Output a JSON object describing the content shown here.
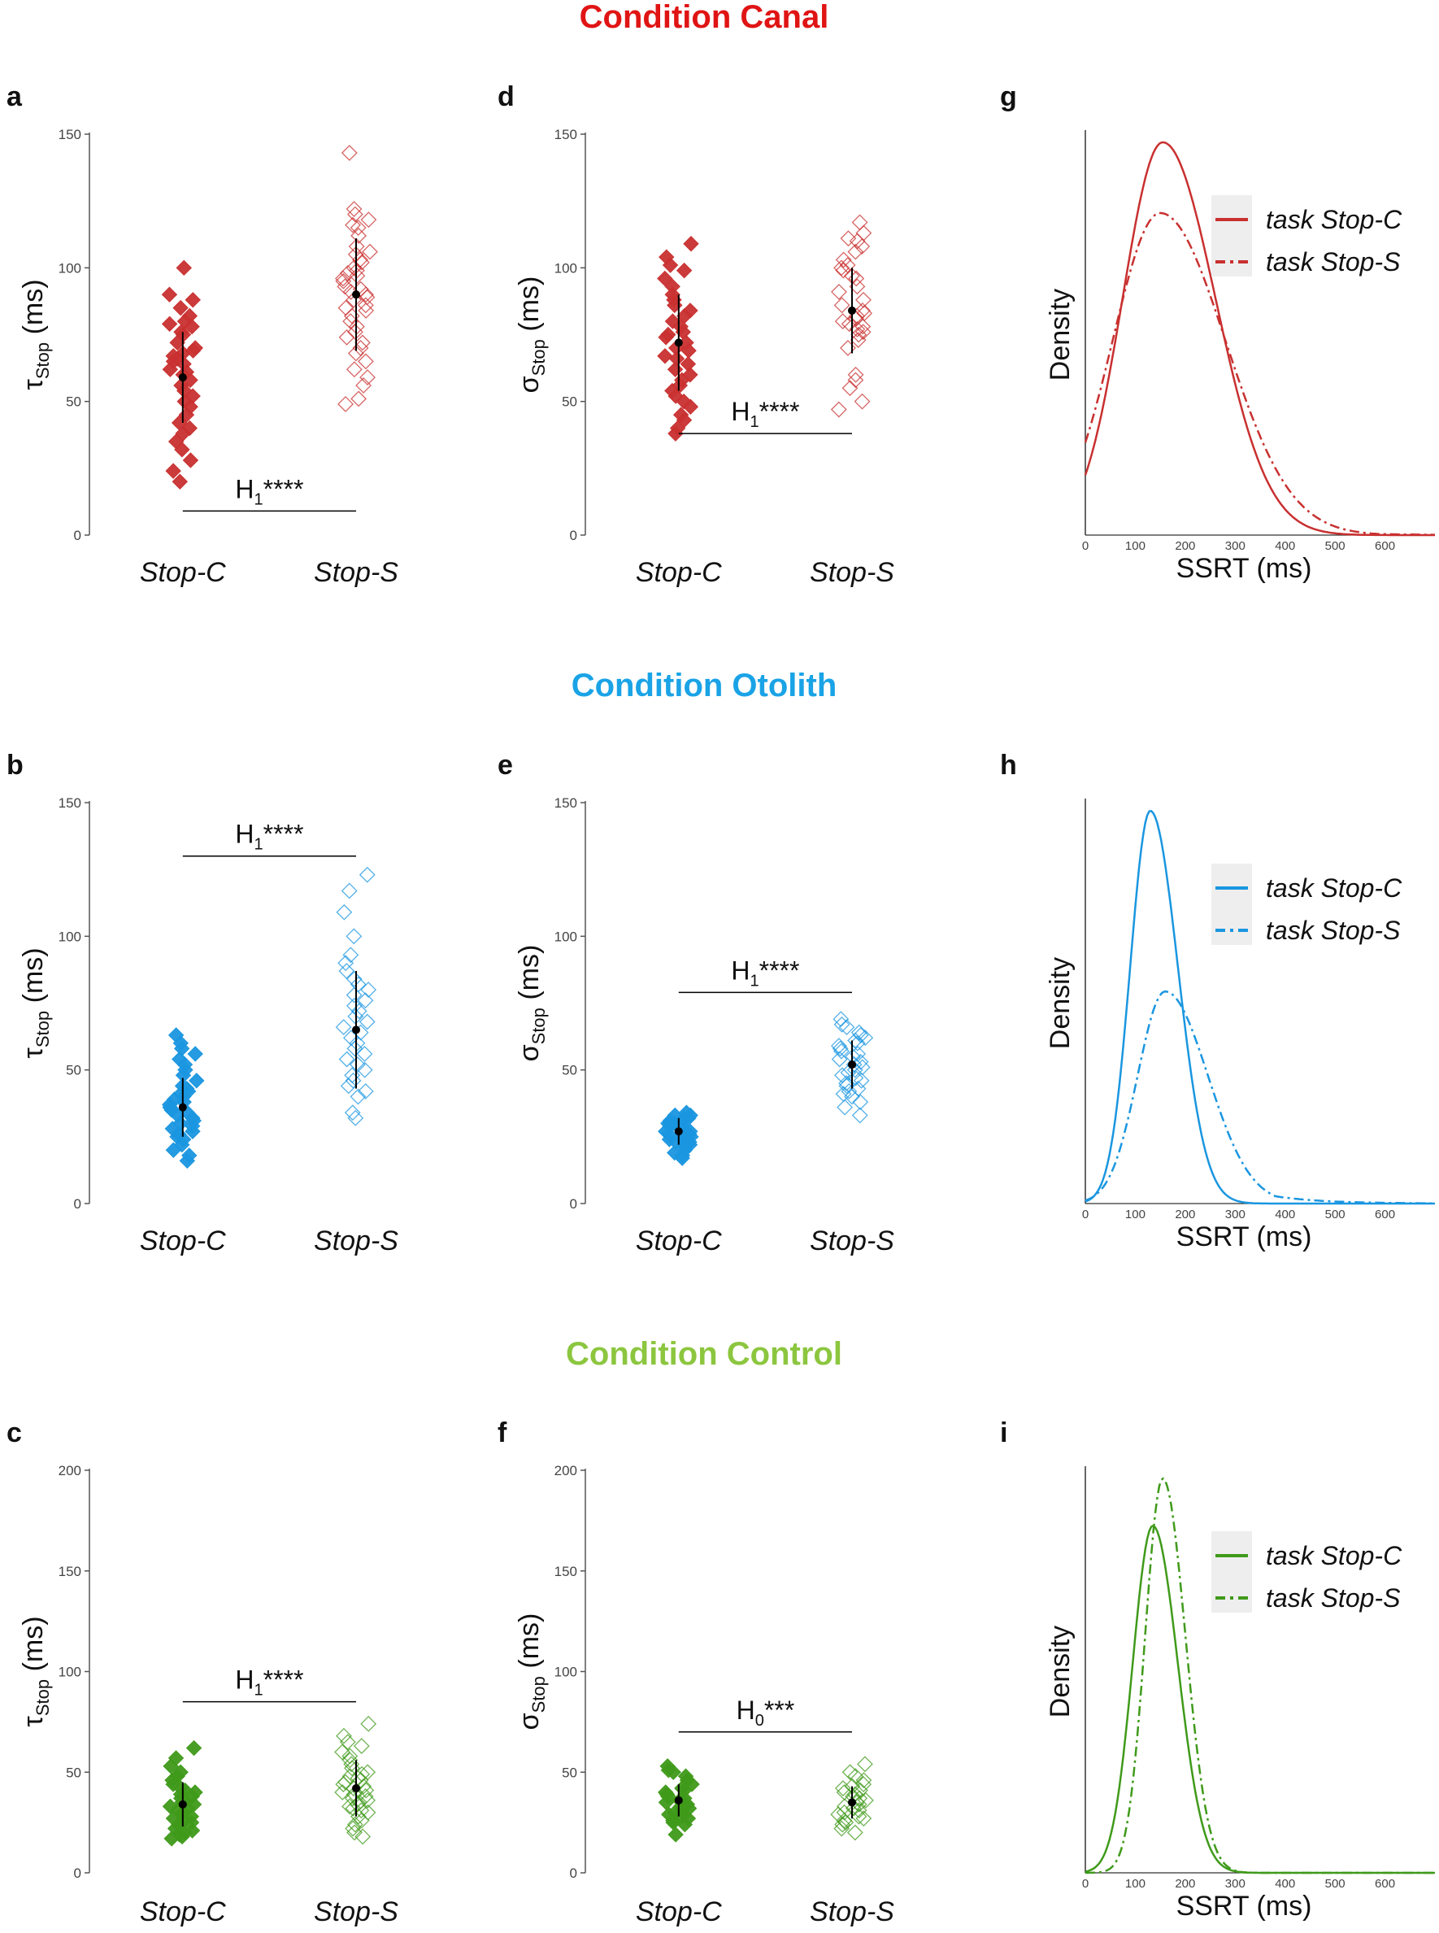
{
  "figure": {
    "conditions": [
      {
        "title": "Condition Canal",
        "color": "#e01414"
      },
      {
        "title": "Condition Otolith",
        "color": "#1aa3e6"
      },
      {
        "title": "Condition Control",
        "color": "#8cc63f"
      }
    ],
    "series_colors": {
      "canal": "#c93030",
      "otolith": "#1a96e0",
      "control": "#3f9a1a"
    },
    "category_labels": [
      "Stop-C",
      "Stop-S"
    ],
    "ylabel_tau": {
      "symbol": "τ",
      "sub": "Stop",
      "unit": " (ms)"
    },
    "ylabel_sigma": {
      "symbol": "σ",
      "sub": "Stop",
      "unit": " (ms)"
    },
    "density_ylabel": "Density",
    "density_xlabel": "SSRT (ms)",
    "legend": [
      "task Stop-C",
      "task Stop-S"
    ]
  },
  "chart_data": [
    {
      "id": "a",
      "letter": "a",
      "type": "scatter",
      "condition": "canal",
      "ylim": [
        0,
        150
      ],
      "yticks": [
        0,
        50,
        100,
        150
      ],
      "categories": [
        "Stop-C",
        "Stop-S"
      ],
      "series": [
        {
          "name": "Stop-C",
          "filled": true,
          "values": [
            100,
            90,
            88,
            85,
            82,
            80,
            79,
            78,
            76,
            75,
            72,
            70,
            69,
            68,
            67,
            66,
            65,
            64,
            62,
            61,
            60,
            58,
            56,
            54,
            52,
            50,
            48,
            45,
            42,
            40,
            38,
            35,
            32,
            28,
            24,
            20
          ],
          "mean": 59,
          "sd": 17
        },
        {
          "name": "Stop-S",
          "filled": false,
          "values": [
            143,
            122,
            120,
            118,
            116,
            115,
            112,
            108,
            106,
            105,
            103,
            102,
            100,
            99,
            98,
            97,
            96,
            95,
            93,
            92,
            91,
            90,
            89,
            88,
            86,
            85,
            84,
            82,
            80,
            78,
            76,
            74,
            72,
            70,
            68,
            65,
            62,
            59,
            56,
            51,
            49
          ],
          "mean": 90,
          "sd": 21
        }
      ],
      "significance": {
        "label": "H",
        "sub": "1",
        "stars": "****",
        "y": 9
      }
    },
    {
      "id": "d",
      "letter": "d",
      "type": "scatter",
      "condition": "canal",
      "ylim": [
        0,
        150
      ],
      "yticks": [
        0,
        50,
        100,
        150
      ],
      "categories": [
        "Stop-C",
        "Stop-S"
      ],
      "series": [
        {
          "name": "Stop-C",
          "filled": true,
          "values": [
            109,
            104,
            101,
            99,
            96,
            93,
            90,
            88,
            86,
            84,
            82,
            80,
            78,
            76,
            75,
            74,
            72,
            70,
            69,
            67,
            66,
            64,
            62,
            60,
            58,
            56,
            54,
            52,
            50,
            48,
            45,
            43,
            40,
            38
          ],
          "mean": 72,
          "sd": 18
        },
        {
          "name": "Stop-S",
          "filled": false,
          "values": [
            117,
            113,
            111,
            110,
            108,
            106,
            103,
            101,
            100,
            99,
            97,
            96,
            93,
            91,
            88,
            86,
            84,
            83,
            82,
            81,
            80,
            79,
            78,
            77,
            76,
            75,
            73,
            70,
            60,
            58,
            55,
            50,
            47
          ],
          "mean": 84,
          "sd": 16
        }
      ],
      "significance": {
        "label": "H",
        "sub": "1",
        "stars": "****",
        "y": 38
      }
    },
    {
      "id": "g",
      "letter": "g",
      "type": "line",
      "condition": "canal",
      "xlim": [
        0,
        700
      ],
      "xticks": [
        0,
        100,
        200,
        300,
        400,
        500,
        600
      ],
      "series": [
        {
          "name": "task Stop-C",
          "dash": "solid",
          "peak_x": 155,
          "peak": 1.0,
          "sigma_left": 80,
          "sigma_right": 105,
          "tail": 0
        },
        {
          "name": "task Stop-S",
          "dash": "dashdot",
          "peak_x": 150,
          "peak": 0.82,
          "sigma_left": 95,
          "sigma_right": 130,
          "tail": 95
        }
      ]
    },
    {
      "id": "b",
      "letter": "b",
      "type": "scatter",
      "condition": "otolith",
      "ylim": [
        0,
        150
      ],
      "yticks": [
        0,
        50,
        100,
        150
      ],
      "categories": [
        "Stop-C",
        "Stop-S"
      ],
      "series": [
        {
          "name": "Stop-C",
          "filled": true,
          "values": [
            63,
            60,
            58,
            56,
            54,
            52,
            50,
            48,
            46,
            44,
            43,
            42,
            41,
            40,
            39,
            38,
            37,
            36,
            35,
            34,
            33,
            32,
            31,
            30,
            29,
            28,
            27,
            26,
            25,
            24,
            22,
            20,
            18,
            16
          ],
          "mean": 36,
          "sd": 11
        },
        {
          "name": "Stop-S",
          "filled": false,
          "values": [
            123,
            117,
            109,
            100,
            93,
            90,
            87,
            84,
            82,
            80,
            78,
            76,
            74,
            72,
            70,
            68,
            66,
            64,
            62,
            60,
            58,
            56,
            54,
            52,
            50,
            48,
            46,
            44,
            42,
            40,
            34,
            32
          ],
          "mean": 65,
          "sd": 22
        }
      ],
      "significance": {
        "label": "H",
        "sub": "1",
        "stars": "****",
        "y": 130
      }
    },
    {
      "id": "e",
      "letter": "e",
      "type": "scatter",
      "condition": "otolith",
      "ylim": [
        0,
        150
      ],
      "yticks": [
        0,
        50,
        100,
        150
      ],
      "categories": [
        "Stop-C",
        "Stop-S"
      ],
      "series": [
        {
          "name": "Stop-C",
          "filled": true,
          "values": [
            34,
            33,
            33,
            32,
            32,
            31,
            31,
            30,
            30,
            29,
            29,
            28,
            28,
            27,
            27,
            26,
            26,
            25,
            25,
            24,
            24,
            23,
            23,
            22,
            22,
            21,
            20,
            19,
            18,
            17
          ],
          "mean": 27,
          "sd": 5
        },
        {
          "name": "Stop-S",
          "filled": false,
          "values": [
            69,
            67,
            66,
            64,
            63,
            62,
            61,
            60,
            59,
            58,
            57,
            56,
            55,
            54,
            53,
            52,
            51,
            50,
            49,
            48,
            47,
            46,
            45,
            44,
            43,
            42,
            41,
            40,
            38,
            36,
            33
          ],
          "mean": 52,
          "sd": 9
        }
      ],
      "significance": {
        "label": "H",
        "sub": "1",
        "stars": "****",
        "y": 79
      }
    },
    {
      "id": "h",
      "letter": "h",
      "type": "line",
      "condition": "otolith",
      "xlim": [
        0,
        700
      ],
      "xticks": [
        0,
        100,
        200,
        300,
        400,
        500,
        600
      ],
      "series": [
        {
          "name": "task Stop-C",
          "dash": "solid",
          "peak_x": 130,
          "peak": 1.0,
          "sigma_left": 40,
          "sigma_right": 55,
          "tail": 0
        },
        {
          "name": "task Stop-S",
          "dash": "dashdot",
          "peak_x": 160,
          "peak": 0.54,
          "sigma_left": 55,
          "sigma_right": 85,
          "tail": 95
        }
      ]
    },
    {
      "id": "c",
      "letter": "c",
      "type": "scatter",
      "condition": "control",
      "ylim": [
        0,
        200
      ],
      "yticks": [
        0,
        50,
        100,
        150,
        200
      ],
      "categories": [
        "Stop-C",
        "Stop-S"
      ],
      "series": [
        {
          "name": "Stop-C",
          "filled": true,
          "values": [
            62,
            57,
            53,
            50,
            48,
            46,
            44,
            42,
            41,
            40,
            39,
            38,
            37,
            36,
            35,
            34,
            33,
            32,
            31,
            30,
            29,
            28,
            27,
            26,
            25,
            24,
            23,
            22,
            21,
            20,
            19,
            18,
            17
          ],
          "mean": 34,
          "sd": 11
        },
        {
          "name": "Stop-S",
          "filled": false,
          "values": [
            74,
            68,
            65,
            63,
            60,
            58,
            56,
            54,
            52,
            50,
            49,
            48,
            47,
            46,
            45,
            44,
            43,
            42,
            41,
            40,
            39,
            38,
            37,
            36,
            35,
            34,
            33,
            32,
            31,
            30,
            28,
            26,
            24,
            22,
            20,
            18
          ],
          "mean": 42,
          "sd": 14
        }
      ],
      "significance": {
        "label": "H",
        "sub": "1",
        "stars": "****",
        "y": 85
      }
    },
    {
      "id": "f",
      "letter": "f",
      "type": "scatter",
      "condition": "control",
      "ylim": [
        0,
        200
      ],
      "yticks": [
        0,
        50,
        100,
        150,
        200
      ],
      "categories": [
        "Stop-C",
        "Stop-S"
      ],
      "series": [
        {
          "name": "Stop-C",
          "filled": true,
          "values": [
            53,
            51,
            50,
            48,
            46,
            44,
            42,
            41,
            40,
            39,
            38,
            37,
            36,
            35,
            34,
            33,
            32,
            31,
            30,
            29,
            28,
            27,
            26,
            25,
            24,
            19
          ],
          "mean": 36,
          "sd": 8
        },
        {
          "name": "Stop-S",
          "filled": false,
          "values": [
            54,
            50,
            48,
            46,
            44,
            43,
            42,
            41,
            40,
            39,
            38,
            37,
            36,
            35,
            34,
            33,
            32,
            31,
            30,
            29,
            28,
            27,
            26,
            25,
            24,
            22,
            20
          ],
          "mean": 35,
          "sd": 8
        }
      ],
      "significance": {
        "label": "H",
        "sub": "0",
        "stars": "***",
        "y": 70
      }
    },
    {
      "id": "i",
      "letter": "i",
      "type": "line",
      "condition": "control",
      "xlim": [
        0,
        700
      ],
      "xticks": [
        0,
        100,
        200,
        300,
        400,
        500,
        600
      ],
      "series": [
        {
          "name": "task Stop-C",
          "dash": "solid",
          "peak_x": 135,
          "peak": 0.88,
          "sigma_left": 40,
          "sigma_right": 50,
          "tail": 0
        },
        {
          "name": "task Stop-S",
          "dash": "dashdot",
          "peak_x": 155,
          "peak": 1.0,
          "sigma_left": 35,
          "sigma_right": 45,
          "tail": 0
        }
      ]
    }
  ]
}
